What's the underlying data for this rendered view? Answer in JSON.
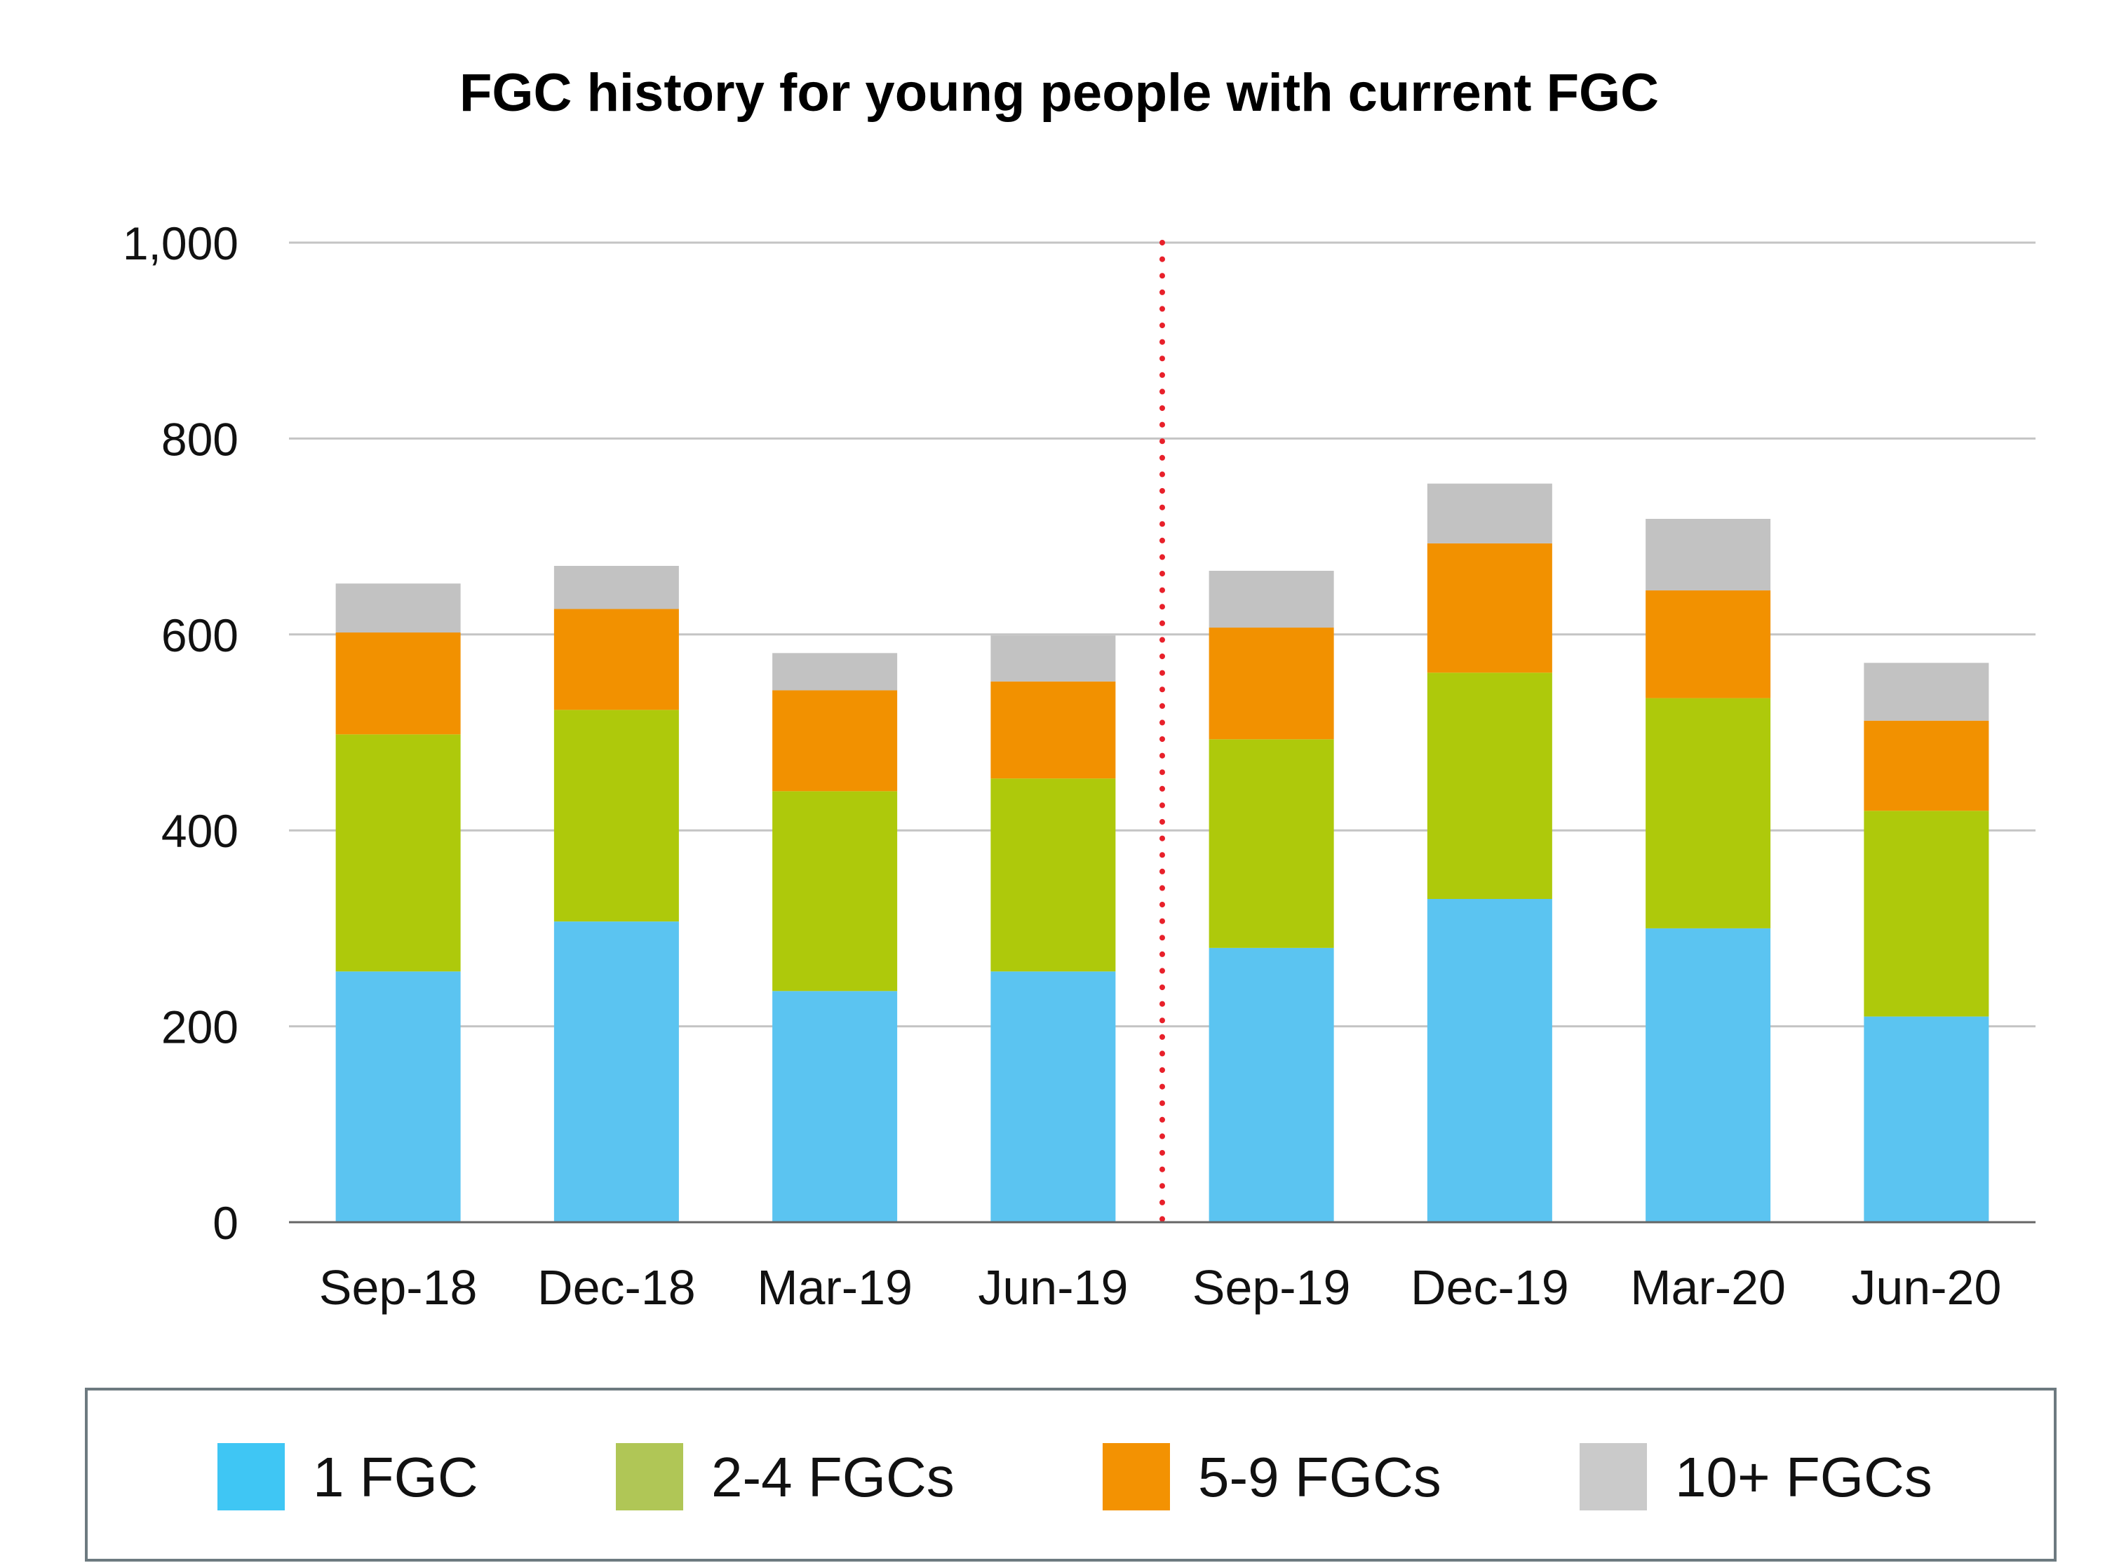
{
  "chart_data": {
    "type": "bar",
    "stacked": true,
    "title": "FGC history for young people with current FGC",
    "xlabel": "",
    "ylabel": "",
    "ylim": [
      0,
      1000
    ],
    "yticks": [
      "0",
      "200",
      "400",
      "600",
      "800",
      "1,000"
    ],
    "ytick_values": [
      0,
      200,
      400,
      600,
      800,
      1000
    ],
    "categories": [
      "Sep-18",
      "Dec-18",
      "Mar-19",
      "Jun-19",
      "Sep-19",
      "Dec-19",
      "Mar-20",
      "Jun-20"
    ],
    "series": [
      {
        "name": "1 FGC",
        "color": "#5bc4f1",
        "legend_color": "#3fc6f4",
        "values": [
          256,
          307,
          236,
          256,
          280,
          330,
          300,
          210
        ]
      },
      {
        "name": "2-4 FGCs",
        "color": "#aec90b",
        "legend_color": "#b0c656",
        "values": [
          242,
          216,
          204,
          197,
          213,
          231,
          235,
          210
        ]
      },
      {
        "name": "5-9 FGCs",
        "color": "#f29100",
        "legend_color": "#f39202",
        "values": [
          104,
          103,
          103,
          99,
          114,
          132,
          110,
          92
        ]
      },
      {
        "name": "10+ FGCs",
        "color": "#c2c2c2",
        "legend_color": "#cacaca",
        "values": [
          50,
          44,
          38,
          47,
          58,
          61,
          73,
          59
        ]
      }
    ],
    "reference_line": {
      "type": "vertical",
      "between": [
        "Jun-19",
        "Sep-19"
      ],
      "style": "dotted",
      "color": "#e8202a"
    },
    "grid": true,
    "legend_position": "bottom"
  }
}
